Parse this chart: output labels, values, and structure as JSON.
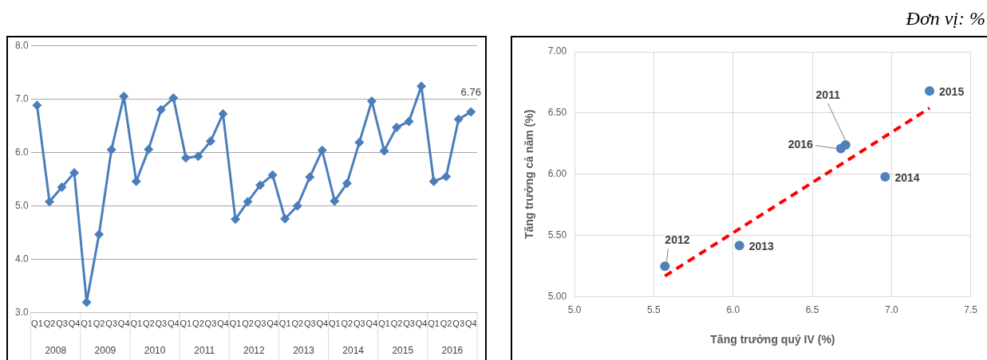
{
  "chart_data": [
    {
      "type": "line",
      "categories": [
        "Q1",
        "Q2",
        "Q3",
        "Q4",
        "Q1",
        "Q2",
        "Q3",
        "Q4",
        "Q1",
        "Q2",
        "Q3",
        "Q4",
        "Q1",
        "Q2",
        "Q3",
        "Q4",
        "Q1",
        "Q2",
        "Q3",
        "Q4",
        "Q1",
        "Q2",
        "Q3",
        "Q4",
        "Q1",
        "Q2",
        "Q3",
        "Q4",
        "Q1",
        "Q2",
        "Q3",
        "Q4",
        "Q1",
        "Q2",
        "Q3",
        "Q4"
      ],
      "annotations": [
        "2008",
        "2009",
        "2010",
        "2011",
        "2012",
        "2013",
        "2014",
        "2015",
        "2016"
      ],
      "series": [
        {
          "color": "#4a7ebb",
          "values": [
            6.88,
            5.08,
            5.35,
            5.62,
            3.2,
            4.47,
            6.05,
            7.05,
            5.46,
            6.06,
            6.8,
            7.02,
            5.9,
            5.93,
            6.21,
            6.72,
            4.75,
            5.08,
            5.39,
            5.58,
            4.76,
            5.0,
            5.54,
            6.04,
            5.09,
            5.42,
            6.19,
            6.96,
            6.03,
            6.47,
            6.58,
            7.24,
            5.46,
            5.55,
            6.62,
            6.76
          ],
          "value_labels": [
            null,
            null,
            null,
            null,
            null,
            null,
            null,
            null,
            null,
            null,
            null,
            null,
            null,
            null,
            null,
            null,
            null,
            null,
            null,
            null,
            null,
            null,
            null,
            null,
            null,
            null,
            null,
            null,
            null,
            null,
            null,
            null,
            null,
            null,
            null,
            "6.76"
          ]
        }
      ],
      "ylim": [
        3,
        8
      ],
      "yticks": [
        {
          "value": 3,
          "label": "3.0"
        },
        {
          "value": 4,
          "label": "4.0"
        },
        {
          "value": 5,
          "label": "5.0"
        },
        {
          "value": 6,
          "label": "6.0"
        },
        {
          "value": 7,
          "label": "7.0"
        },
        {
          "value": 8,
          "label": "8.0"
        }
      ],
      "grid": "y",
      "marker": "diamond",
      "legend": false
    },
    {
      "type": "scatter",
      "xlabel": "Tăng trưởng quý IV (%)",
      "ylabel": "Tăng trưởng cả năm (%)",
      "annotations": [
        "Đơn vị: %",
        {
          "text": "2011",
          "x": 6.71,
          "y": 6.24
        },
        {
          "text": "2012",
          "x": 5.57,
          "y": 5.25
        },
        {
          "text": "2013",
          "x": 6.04,
          "y": 5.42
        },
        {
          "text": "2014",
          "x": 6.96,
          "y": 5.98
        },
        {
          "text": "2015",
          "x": 7.24,
          "y": 6.68
        },
        {
          "text": "2016",
          "x": 6.68,
          "y": 6.21
        }
      ],
      "series": [
        {
          "color": "#4f81bd",
          "x": [
            6.71,
            5.57,
            6.04,
            6.96,
            7.24,
            6.68
          ],
          "values": [
            6.24,
            5.25,
            5.42,
            5.98,
            6.68,
            6.21
          ]
        },
        {
          "type": "line",
          "color": "#ff0000",
          "line_style": "dashed",
          "marker": "none",
          "x": [
            5.57,
            7.24
          ],
          "values": [
            5.17,
            6.54
          ]
        }
      ],
      "xlim": [
        5,
        7.5
      ],
      "xticks": [
        {
          "value": 5,
          "label": "5.0"
        },
        {
          "value": 5.5,
          "label": "5.5"
        },
        {
          "value": 6,
          "label": "6.0"
        },
        {
          "value": 6.5,
          "label": "6.5"
        },
        {
          "value": 7,
          "label": "7.0"
        },
        {
          "value": 7.5,
          "label": "7.5"
        }
      ],
      "ylim": [
        5,
        7
      ],
      "yticks": [
        {
          "value": 5,
          "label": "5.00"
        },
        {
          "value": 5.5,
          "label": "5.50"
        },
        {
          "value": 6,
          "label": "6.00"
        },
        {
          "value": 6.5,
          "label": "6.50"
        },
        {
          "value": 7,
          "label": "7.00"
        }
      ],
      "grid": true,
      "marker": "circle",
      "legend": false
    }
  ]
}
